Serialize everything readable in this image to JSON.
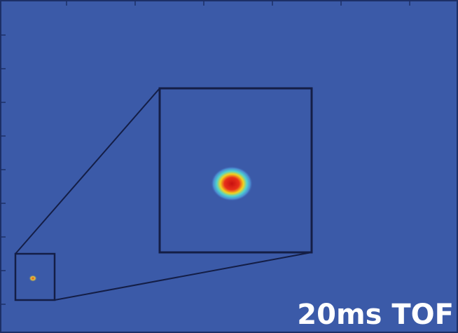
{
  "label": "20ms TOF"
}
